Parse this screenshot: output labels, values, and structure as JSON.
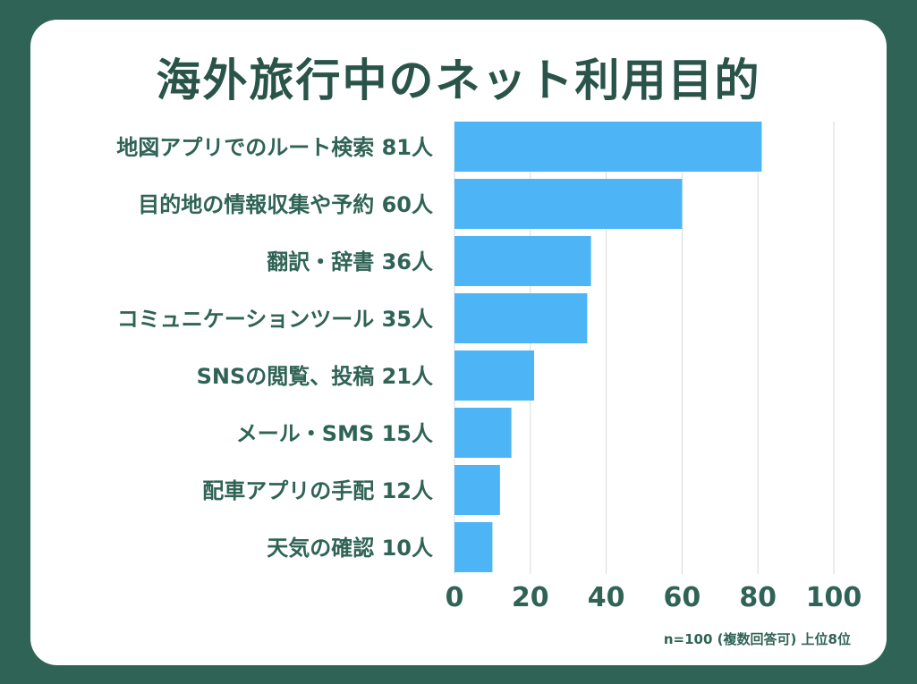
{
  "title": "海外旅行中のネット利用目的",
  "footnote": "n=100 (複数回答可) 上位8位",
  "colors": {
    "background": "#2f6355",
    "card": "#ffffff",
    "bar": "#4db5f5",
    "text": "#2f6355",
    "grid": "#d4dbd9"
  },
  "chart_data": {
    "type": "bar",
    "orientation": "horizontal",
    "title": "海外旅行中のネット利用目的",
    "categories": [
      "地図アプリでのルート検索",
      "目的地の情報収集や予約",
      "翻訳・辞書",
      "コミュニケーションツール",
      "SNSの閲覧、投稿",
      "メール・SMS",
      "配車アプリの手配",
      "天気の確認"
    ],
    "values": [
      81,
      60,
      36,
      35,
      21,
      15,
      12,
      10
    ],
    "value_unit": "人",
    "xlim": [
      0,
      100
    ],
    "xticks": [
      0,
      20,
      40,
      60,
      80,
      100
    ],
    "grid": true
  }
}
